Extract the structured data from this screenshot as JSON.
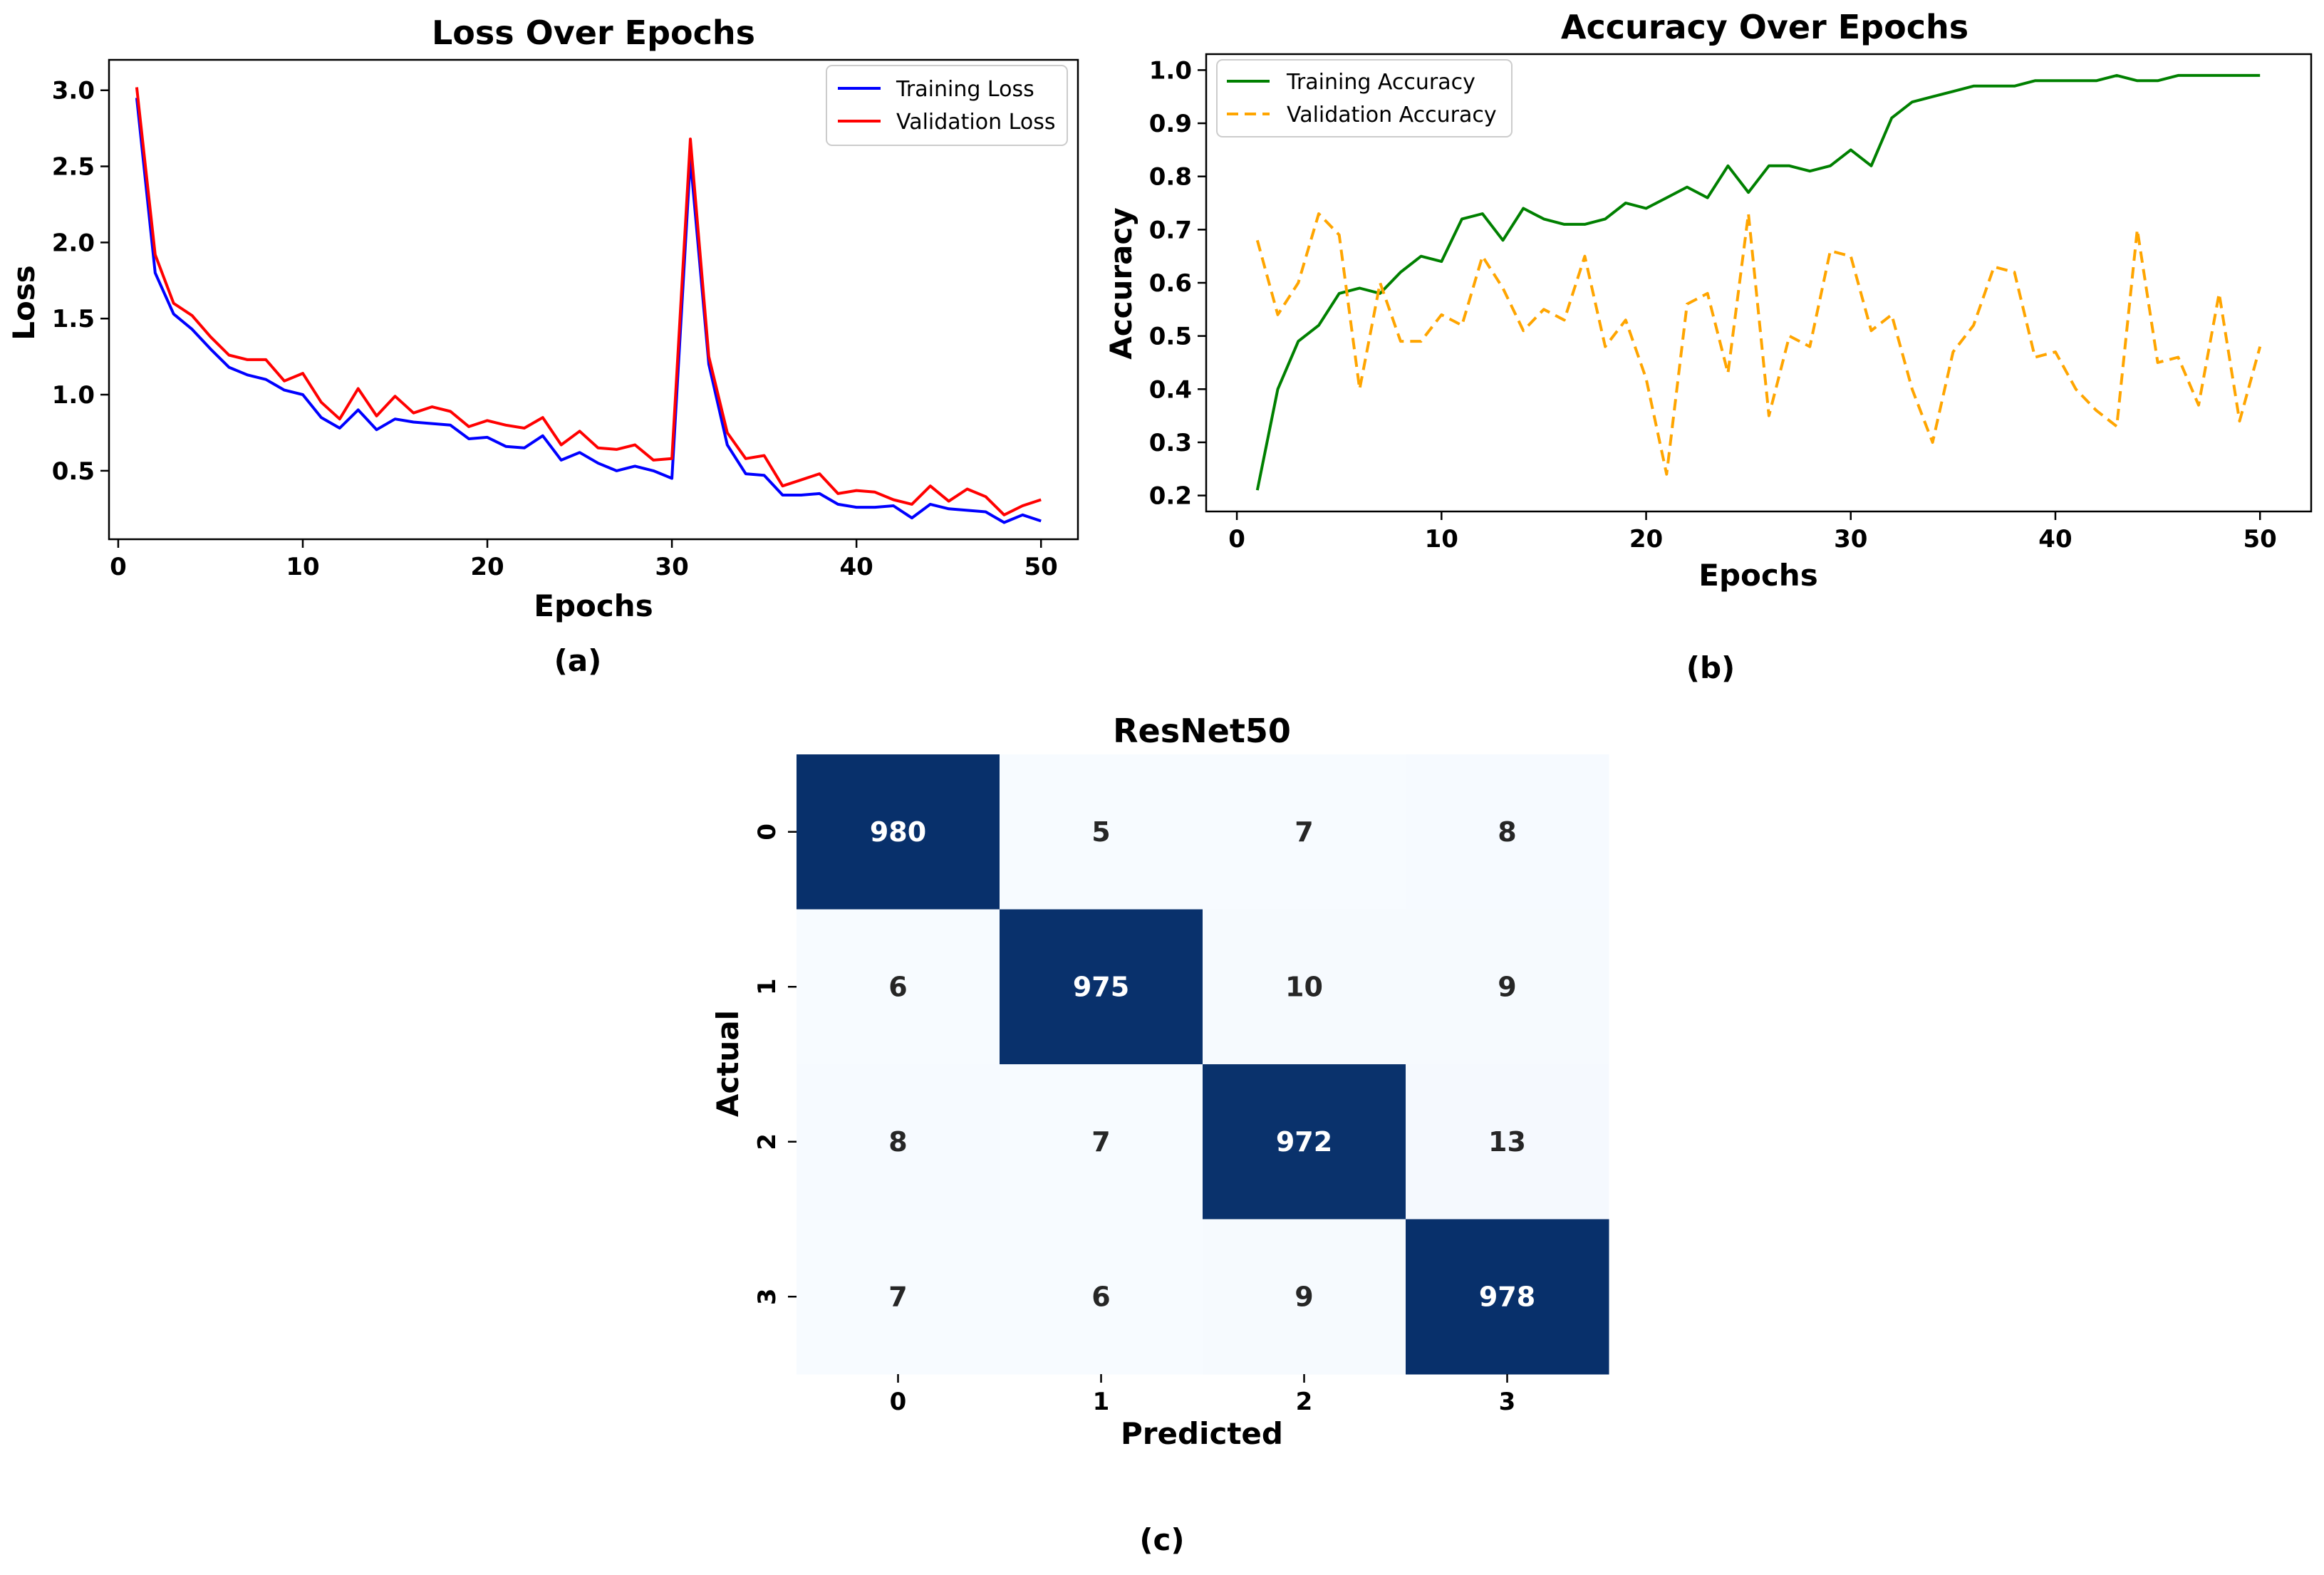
{
  "chart_data": [
    {
      "type": "line",
      "panel": "(a)",
      "title": "Loss Over Epochs",
      "xlabel": "Epochs",
      "ylabel": "Loss",
      "xlim": [
        -0.5,
        52
      ],
      "ylim": [
        0.05,
        3.2
      ],
      "xticks": [
        0,
        10,
        20,
        30,
        40,
        50
      ],
      "yticks": [
        0.5,
        1.0,
        1.5,
        2.0,
        2.5,
        3.0
      ],
      "legend_position": "top-right",
      "x": [
        1,
        2,
        3,
        4,
        5,
        6,
        7,
        8,
        9,
        10,
        11,
        12,
        13,
        14,
        15,
        16,
        17,
        18,
        19,
        20,
        21,
        22,
        23,
        24,
        25,
        26,
        27,
        28,
        29,
        30,
        31,
        32,
        33,
        34,
        35,
        36,
        37,
        38,
        39,
        40,
        41,
        42,
        43,
        44,
        45,
        46,
        47,
        48,
        49,
        50
      ],
      "series": [
        {
          "name": "Training Loss",
          "color": "#0000ff",
          "dash": "solid",
          "values": [
            2.95,
            1.8,
            1.53,
            1.43,
            1.3,
            1.18,
            1.13,
            1.1,
            1.03,
            1.0,
            0.85,
            0.78,
            0.9,
            0.77,
            0.84,
            0.82,
            0.81,
            0.8,
            0.71,
            0.72,
            0.66,
            0.65,
            0.73,
            0.57,
            0.62,
            0.55,
            0.5,
            0.53,
            0.5,
            0.45,
            2.55,
            1.2,
            0.67,
            0.48,
            0.47,
            0.34,
            0.34,
            0.35,
            0.28,
            0.26,
            0.26,
            0.27,
            0.19,
            0.28,
            0.25,
            0.24,
            0.23,
            0.16,
            0.21,
            0.17
          ]
        },
        {
          "name": "Validation Loss",
          "color": "#ff0000",
          "dash": "solid",
          "values": [
            3.02,
            1.92,
            1.6,
            1.52,
            1.38,
            1.26,
            1.23,
            1.23,
            1.09,
            1.14,
            0.95,
            0.84,
            1.04,
            0.86,
            0.99,
            0.88,
            0.92,
            0.89,
            0.79,
            0.83,
            0.8,
            0.78,
            0.85,
            0.67,
            0.76,
            0.65,
            0.64,
            0.67,
            0.57,
            0.58,
            2.68,
            1.25,
            0.75,
            0.58,
            0.6,
            0.4,
            0.44,
            0.48,
            0.35,
            0.37,
            0.36,
            0.31,
            0.28,
            0.4,
            0.3,
            0.38,
            0.33,
            0.21,
            0.27,
            0.31
          ]
        }
      ]
    },
    {
      "type": "line",
      "panel": "(b)",
      "title": "Accuracy Over Epochs",
      "xlabel": "Epochs",
      "ylabel": "Accuracy",
      "xlim": [
        -1.5,
        52.5
      ],
      "ylim": [
        0.17,
        1.03
      ],
      "xticks": [
        0,
        10,
        20,
        30,
        40,
        50
      ],
      "yticks": [
        0.2,
        0.3,
        0.4,
        0.5,
        0.6,
        0.7,
        0.8,
        0.9,
        1.0
      ],
      "legend_position": "top-left",
      "x": [
        1,
        2,
        3,
        4,
        5,
        6,
        7,
        8,
        9,
        10,
        11,
        12,
        13,
        14,
        15,
        16,
        17,
        18,
        19,
        20,
        21,
        22,
        23,
        24,
        25,
        26,
        27,
        28,
        29,
        30,
        31,
        32,
        33,
        34,
        35,
        36,
        37,
        38,
        39,
        40,
        41,
        42,
        43,
        44,
        45,
        46,
        47,
        48,
        49,
        50
      ],
      "series": [
        {
          "name": "Training Accuracy",
          "color": "#008000",
          "dash": "solid",
          "values": [
            0.21,
            0.4,
            0.49,
            0.52,
            0.58,
            0.59,
            0.58,
            0.62,
            0.65,
            0.64,
            0.72,
            0.73,
            0.68,
            0.74,
            0.72,
            0.71,
            0.71,
            0.72,
            0.75,
            0.74,
            0.76,
            0.78,
            0.76,
            0.82,
            0.77,
            0.82,
            0.82,
            0.81,
            0.82,
            0.85,
            0.82,
            0.91,
            0.94,
            0.95,
            0.96,
            0.97,
            0.97,
            0.97,
            0.98,
            0.98,
            0.98,
            0.98,
            0.99,
            0.98,
            0.98,
            0.99,
            0.99,
            0.99,
            0.99,
            0.99
          ]
        },
        {
          "name": "Validation Accuracy",
          "color": "#ffa500",
          "dash": "dashed",
          "values": [
            0.68,
            0.54,
            0.6,
            0.73,
            0.69,
            0.4,
            0.6,
            0.49,
            0.49,
            0.54,
            0.52,
            0.65,
            0.59,
            0.51,
            0.55,
            0.53,
            0.65,
            0.48,
            0.53,
            0.42,
            0.24,
            0.56,
            0.58,
            0.43,
            0.73,
            0.35,
            0.5,
            0.48,
            0.66,
            0.65,
            0.51,
            0.54,
            0.4,
            0.3,
            0.47,
            0.52,
            0.63,
            0.62,
            0.46,
            0.47,
            0.4,
            0.36,
            0.33,
            0.7,
            0.45,
            0.46,
            0.37,
            0.58,
            0.34,
            0.48
          ]
        }
      ]
    },
    {
      "type": "heatmap",
      "panel": "(c)",
      "title": "ResNet50",
      "xlabel": "Predicted",
      "ylabel": "Actual",
      "x_categories": [
        "0",
        "1",
        "2",
        "3"
      ],
      "y_categories": [
        "0",
        "1",
        "2",
        "3"
      ],
      "values": [
        [
          980,
          5,
          7,
          8
        ],
        [
          6,
          975,
          10,
          9
        ],
        [
          8,
          7,
          972,
          13
        ],
        [
          7,
          6,
          9,
          978
        ]
      ],
      "colormap": "Blues",
      "low_color": "#f7fbff",
      "high_color": "#08306b",
      "low_text_color": "#262626",
      "high_text_color": "#ffffff"
    }
  ],
  "captions": {
    "a": "(a)",
    "b": "(b)",
    "c": "(c)"
  }
}
